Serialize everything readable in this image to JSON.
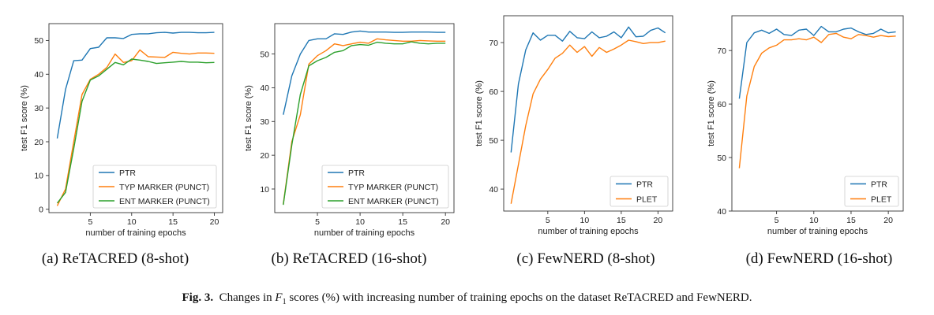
{
  "colors": {
    "blue": "#1f77b4",
    "orange": "#ff7f0e",
    "green": "#2ca02c",
    "axis": "#333333",
    "text": "#222222"
  },
  "figure_caption": {
    "label": "Fig. 3.",
    "text_before": "Changes in ",
    "symbol": "F",
    "subscript": "1",
    "text_after": " scores (%) with increasing number of training epochs on the dataset ReTACRED and FewNERD."
  },
  "chart_data": [
    {
      "type": "line",
      "caption": "(a)  ReTACRED (8-shot)",
      "xlabel": "number of training epochs",
      "ylabel": "test F1 score (%)",
      "xlim": [
        0,
        21
      ],
      "ylim": [
        -1,
        55
      ],
      "xticks": [
        5,
        10,
        15,
        20
      ],
      "yticks": [
        0,
        10,
        20,
        30,
        40,
        50
      ],
      "legend": "bottom-right",
      "x": [
        1,
        2,
        3,
        4,
        5,
        6,
        7,
        8,
        9,
        10,
        11,
        12,
        13,
        14,
        15,
        16,
        17,
        18,
        19,
        20
      ],
      "series": [
        {
          "name": "PTR",
          "color": "#1f77b4",
          "values": [
            21,
            35.5,
            44,
            44.2,
            47.6,
            48,
            50.8,
            50.8,
            50.6,
            51.8,
            52,
            52,
            52.3,
            52.4,
            52.2,
            52.4,
            52.4,
            52.3,
            52.3,
            52.4
          ]
        },
        {
          "name": "TYP MARKER (PUNCT)",
          "color": "#ff7f0e",
          "values": [
            1,
            6,
            20,
            34,
            38.5,
            40,
            42,
            46,
            43.5,
            44,
            47.2,
            45.2,
            45.1,
            45,
            46.5,
            46.2,
            46,
            46.3,
            46.3,
            46.2
          ]
        },
        {
          "name": "ENT MARKER (PUNCT)",
          "color": "#2ca02c",
          "values": [
            1.8,
            5,
            18,
            32,
            38.3,
            39.5,
            41.5,
            43.5,
            42.8,
            44.5,
            44.2,
            43.8,
            43.2,
            43.4,
            43.6,
            43.8,
            43.6,
            43.6,
            43.4,
            43.5
          ]
        }
      ]
    },
    {
      "type": "line",
      "caption": "(b)  ReTACRED (16-shot)",
      "xlabel": "number of training epochs",
      "ylabel": "test F1 score (%)",
      "xlim": [
        0,
        21
      ],
      "ylim": [
        3,
        59
      ],
      "xticks": [
        5,
        10,
        15,
        20
      ],
      "yticks": [
        10,
        20,
        30,
        40,
        50
      ],
      "legend": "bottom-right",
      "x": [
        1,
        2,
        3,
        4,
        5,
        6,
        7,
        8,
        9,
        10,
        11,
        12,
        13,
        14,
        15,
        16,
        17,
        18,
        19,
        20
      ],
      "series": [
        {
          "name": "PTR",
          "color": "#1f77b4",
          "values": [
            32,
            43.5,
            50,
            54,
            54.5,
            54.5,
            56,
            55.8,
            56.5,
            56.8,
            56.5,
            56.5,
            56.5,
            56.4,
            56.4,
            56.5,
            56.5,
            56.5,
            56.4,
            56.4
          ]
        },
        {
          "name": "TYP MARKER (PUNCT)",
          "color": "#ff7f0e",
          "values": [
            5.5,
            24,
            32,
            47,
            49.5,
            51,
            53,
            52.5,
            53,
            53.5,
            53.2,
            54.5,
            54.2,
            54,
            53.8,
            53.8,
            54,
            53.9,
            53.8,
            53.8
          ]
        },
        {
          "name": "ENT MARKER (PUNCT)",
          "color": "#2ca02c",
          "values": [
            5.3,
            23,
            38,
            46.5,
            48,
            49,
            50.5,
            51,
            52.5,
            52.8,
            52.6,
            53.5,
            53.2,
            53,
            53,
            53.6,
            53.2,
            53,
            53.2,
            53.2
          ]
        }
      ]
    },
    {
      "type": "line",
      "caption": "(c)  FewNERD (8-shot)",
      "xlabel": "number of training epochs",
      "ylabel": "test F1 score (%)",
      "xlim": [
        -1,
        22
      ],
      "ylim": [
        35.5,
        75.5
      ],
      "xticks": [
        5,
        10,
        15,
        20
      ],
      "yticks": [
        40,
        50,
        60,
        70
      ],
      "legend": "bottom-right",
      "x": [
        0,
        1,
        2,
        3,
        4,
        5,
        6,
        7,
        8,
        9,
        10,
        11,
        12,
        13,
        14,
        15,
        16,
        17,
        18,
        19,
        20,
        21
      ],
      "series": [
        {
          "name": "PTR",
          "color": "#1f77b4",
          "values": [
            47.5,
            61.5,
            68.5,
            72,
            70.5,
            71.5,
            71.5,
            70.3,
            72.3,
            71,
            70.8,
            72.2,
            71,
            71.3,
            72.2,
            71,
            73.2,
            71.2,
            71.3,
            72.5,
            73,
            72
          ]
        },
        {
          "name": "PLET",
          "color": "#ff7f0e",
          "values": [
            37,
            45,
            53,
            59.5,
            62.5,
            64.5,
            66.8,
            67.8,
            69.5,
            68,
            69.2,
            67.2,
            69,
            68,
            68.7,
            69.5,
            70.5,
            70.2,
            69.8,
            70,
            70,
            70.3
          ]
        }
      ]
    },
    {
      "type": "line",
      "caption": "(d)  FewNERD (16-shot)",
      "xlabel": "number of training epochs",
      "ylabel": "test F1 score (%)",
      "xlim": [
        -1,
        22
      ],
      "ylim": [
        40,
        76.5
      ],
      "xticks": [
        5,
        10,
        15,
        20
      ],
      "yticks": [
        40,
        50,
        60,
        70
      ],
      "legend": "bottom-right",
      "x": [
        0,
        1,
        2,
        3,
        4,
        5,
        6,
        7,
        8,
        9,
        10,
        11,
        12,
        13,
        14,
        15,
        16,
        17,
        18,
        19,
        20,
        21
      ],
      "series": [
        {
          "name": "PTR",
          "color": "#1f77b4",
          "values": [
            61,
            71.5,
            73.3,
            73.8,
            73.2,
            74,
            73,
            72.8,
            73.8,
            74,
            72.8,
            74.5,
            73.5,
            73.5,
            74,
            74.2,
            73.5,
            73,
            73.2,
            74,
            73.3,
            73.5
          ]
        },
        {
          "name": "PLET",
          "color": "#ff7f0e",
          "values": [
            48,
            61.5,
            67,
            69.5,
            70.5,
            71,
            72,
            72,
            72.2,
            72,
            72.5,
            71.5,
            73,
            73.2,
            72.5,
            72.2,
            73,
            72.8,
            72.5,
            72.8,
            72.6,
            72.7
          ]
        }
      ]
    }
  ]
}
